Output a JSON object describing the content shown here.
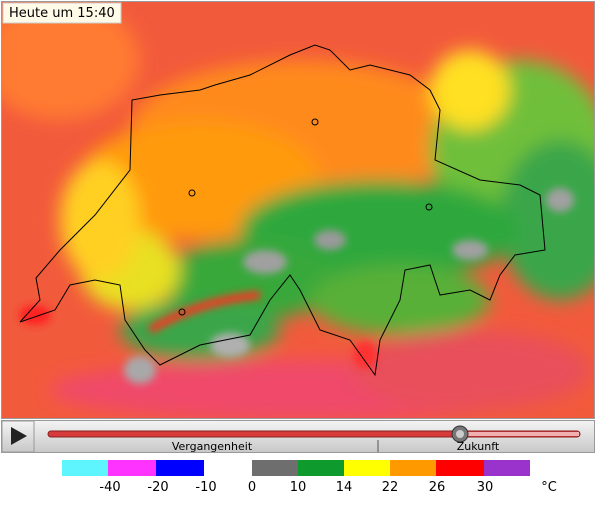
{
  "map": {
    "timestamp": "Heute um 15:40"
  },
  "player": {
    "past": "Vergangenheit",
    "future": "Zukunft"
  },
  "legend": {
    "colors": [
      "#5ff5ff",
      "#ff33ff",
      "#0000ff",
      "#6e6e6e",
      "#0f9a2e",
      "#ffff00",
      "#ff9900",
      "#ff0000",
      "#9933cc"
    ],
    "labels": [
      -40,
      -20,
      -10,
      0,
      10,
      14,
      22,
      26,
      30
    ],
    "unit": "°C"
  }
}
